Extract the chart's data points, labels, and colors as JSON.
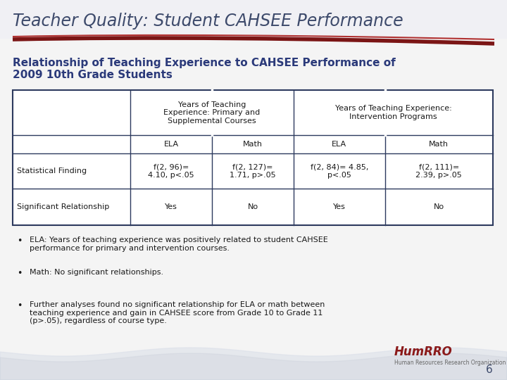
{
  "title": "Teacher Quality: Student CAHSEE Performance",
  "subtitle_line1": "Relationship of Teaching Experience to CAHSEE Performance of",
  "subtitle_line2": "2009 10th Grade Students",
  "title_color": "#3d4a6b",
  "subtitle_color": "#2b3a7a",
  "header1_col1": "Years of Teaching\nExperience: Primary and\nSupplemental Courses",
  "header1_col2": "Years of Teaching Experience:\nIntervention Programs",
  "header2": [
    "ELA",
    "Math",
    "ELA",
    "Math"
  ],
  "data_rows": [
    [
      "Statistical Finding",
      "f(2, 96)=\n4.10, p<.05",
      "f(2, 127)=\n1.71, p>.05",
      "f(2, 84)= 4.85,\np<.05",
      "f(2, 111)=\n2.39, p>.05"
    ],
    [
      "Significant Relationship",
      "Yes",
      "No",
      "Yes",
      "No"
    ]
  ],
  "bullets": [
    "ELA: Years of teaching experience was positively related to student CAHSEE\nperformance for primary and intervention courses.",
    "Math: No significant relationships.",
    "Further analyses found no significant relationship for ELA or math between\nteaching experience and gain in CAHSEE score from Grade 10 to Grade 11\n(p>.05), regardless of course type."
  ],
  "page_number": "6",
  "background_color": "#f0f0f0",
  "table_border_color": "#2d3a5e",
  "swoosh_color1": "#8b2020",
  "swoosh_color2": "#c0392b",
  "bullet_color": "#1a1a1a",
  "table_text_color": "#1a1a1a",
  "humrro_color": "#8b1a1a",
  "page_num_color": "#3d4a6b"
}
